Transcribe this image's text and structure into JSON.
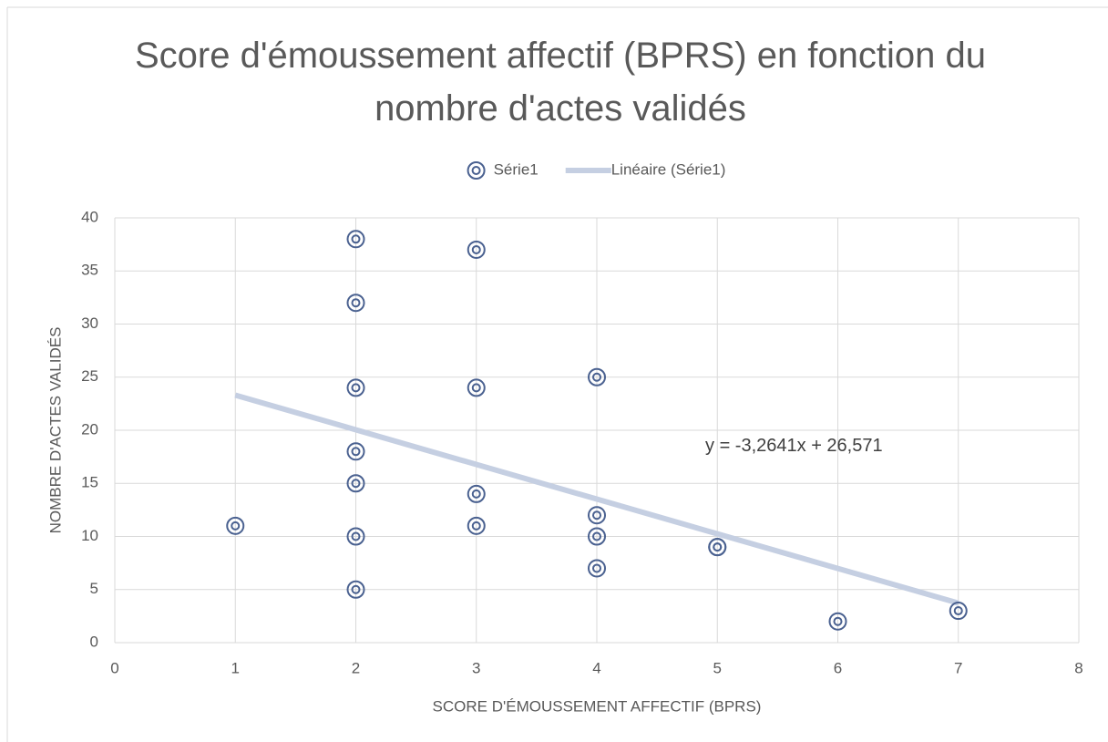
{
  "chart_data": {
    "type": "scatter",
    "title": "Score d'émoussement affectif (BPRS) en fonction du nombre d'actes validés",
    "x_label": "SCORE D'ÉMOUSSEMENT AFFECTIF (BPRS)",
    "y_label": "NOMBRE D'ACTES VALIDÉS",
    "xlim": [
      0,
      8
    ],
    "xticks": [
      0,
      1,
      2,
      3,
      4,
      5,
      6,
      7,
      8
    ],
    "ylim": [
      0,
      40
    ],
    "yticks": [
      0,
      5,
      10,
      15,
      20,
      25,
      30,
      35,
      40
    ],
    "grid": true,
    "legend": "top",
    "series": [
      {
        "name": "Série1",
        "color": "#4a6190",
        "x": [
          1,
          2,
          2,
          2,
          2,
          2,
          2,
          2,
          3,
          3,
          3,
          3,
          4,
          4,
          4,
          4,
          5,
          5,
          6,
          7
        ],
        "values": [
          11,
          38,
          32,
          24,
          18,
          15,
          10,
          5,
          37,
          24,
          14,
          11,
          25,
          12,
          10,
          7,
          9,
          9,
          2,
          3
        ]
      },
      {
        "name": "Linéaire (Série1)",
        "color": "#c5cfe2",
        "type": "line",
        "x": [
          1,
          7
        ],
        "values": [
          23.307,
          3.722
        ]
      }
    ],
    "annotations": [
      {
        "text": "y = -3,2641x + 26,571",
        "x": 4.9,
        "y": 18.5
      }
    ]
  }
}
